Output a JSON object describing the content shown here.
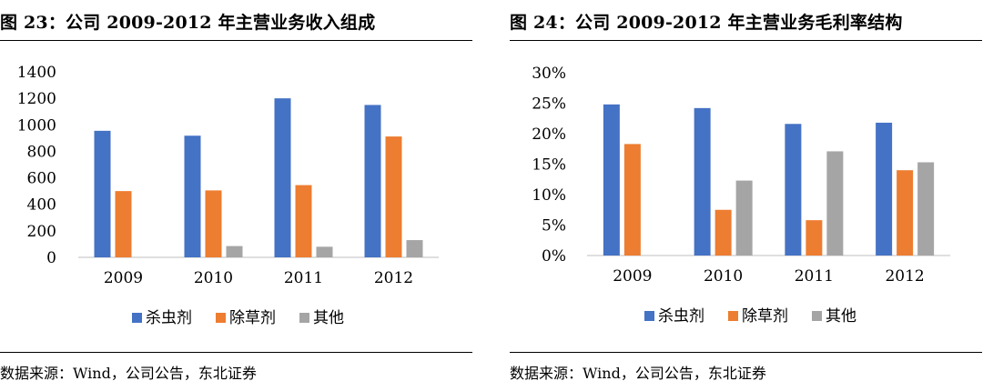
{
  "left": {
    "title": "图 23：公司 2009-2012 年主营业务收入组成",
    "source": "数据来源：Wind，公司公告，东北证券",
    "chart_data": {
      "type": "bar",
      "categories": [
        "2009",
        "2010",
        "2011",
        "2012"
      ],
      "series": [
        {
          "name": "杀虫剂",
          "values": [
            955,
            918,
            1200,
            1150
          ],
          "color": "#4472C4"
        },
        {
          "name": "除草剂",
          "values": [
            500,
            505,
            545,
            912
          ],
          "color": "#ED7D31"
        },
        {
          "name": "其他",
          "values": [
            0,
            85,
            80,
            130
          ],
          "color": "#A5A5A5"
        }
      ],
      "ylim": [
        0,
        1400
      ],
      "yticks": [
        0,
        200,
        400,
        600,
        800,
        1000,
        1200,
        1400
      ],
      "ytick_labels": [
        "0",
        "200",
        "400",
        "600",
        "800",
        "1000",
        "1200",
        "1400"
      ],
      "grid": false,
      "legend": "bottom"
    }
  },
  "right": {
    "title": "图 24：公司 2009-2012 年主营业务毛利率结构",
    "source": "数据来源：Wind，公司公告，东北证券",
    "chart_data": {
      "type": "bar",
      "categories": [
        "2009",
        "2010",
        "2011",
        "2012"
      ],
      "series": [
        {
          "name": "杀虫剂",
          "values": [
            24.8,
            24.2,
            21.6,
            21.8
          ],
          "color": "#4472C4"
        },
        {
          "name": "除草剂",
          "values": [
            18.3,
            7.5,
            5.8,
            14.0
          ],
          "color": "#ED7D31"
        },
        {
          "name": "其他",
          "values": [
            0,
            12.3,
            17.1,
            15.3
          ],
          "color": "#A5A5A5"
        }
      ],
      "ylim": [
        0,
        30
      ],
      "yticks": [
        0,
        5,
        10,
        15,
        20,
        25,
        30
      ],
      "ytick_labels": [
        "0%",
        "5%",
        "10%",
        "15%",
        "20%",
        "25%",
        "30%"
      ],
      "grid": false,
      "legend": "bottom"
    }
  }
}
